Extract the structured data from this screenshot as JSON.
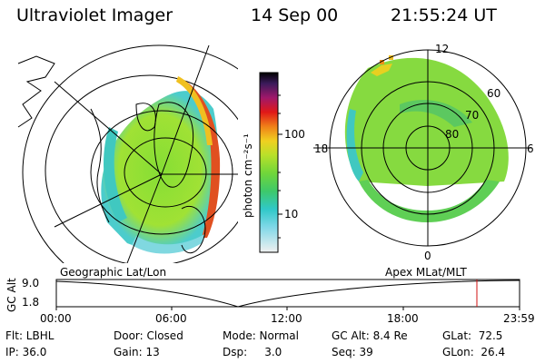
{
  "header": {
    "title": "Ultraviolet Imager",
    "date": "14 Sep 00",
    "time": "21:55:24 UT"
  },
  "colorbar": {
    "label": "photon cm⁻²s⁻¹",
    "ticks": [
      "100",
      "10"
    ]
  },
  "polar_plot": {
    "labels": {
      "top": "12",
      "left": "18",
      "right": "6",
      "bottom": "0"
    },
    "rings": [
      "60",
      "70",
      "80"
    ]
  },
  "bottom": {
    "left_caption": "Geographic Lat/Lon",
    "right_caption": "Apex  MLat/MLT",
    "y_axis_label": "GC Alt",
    "y_ticks": [
      "9.0",
      "1.8"
    ],
    "x_ticks": [
      "00:00",
      "06:00",
      "12:00",
      "18:00",
      "23:59"
    ]
  },
  "info": {
    "flt": "Flt: LBHL",
    "ip": "IP: 36.0",
    "door": "Door: Closed",
    "gain": "Gain: 13",
    "mode": "Mode: Normal",
    "dsp": "Dsp:     3.0",
    "gcalt": "GC Alt: 8.4 Re",
    "seq": "Seq: 39",
    "glat": "GLat:  72.5",
    "glon": "GLon:  26.4"
  }
}
